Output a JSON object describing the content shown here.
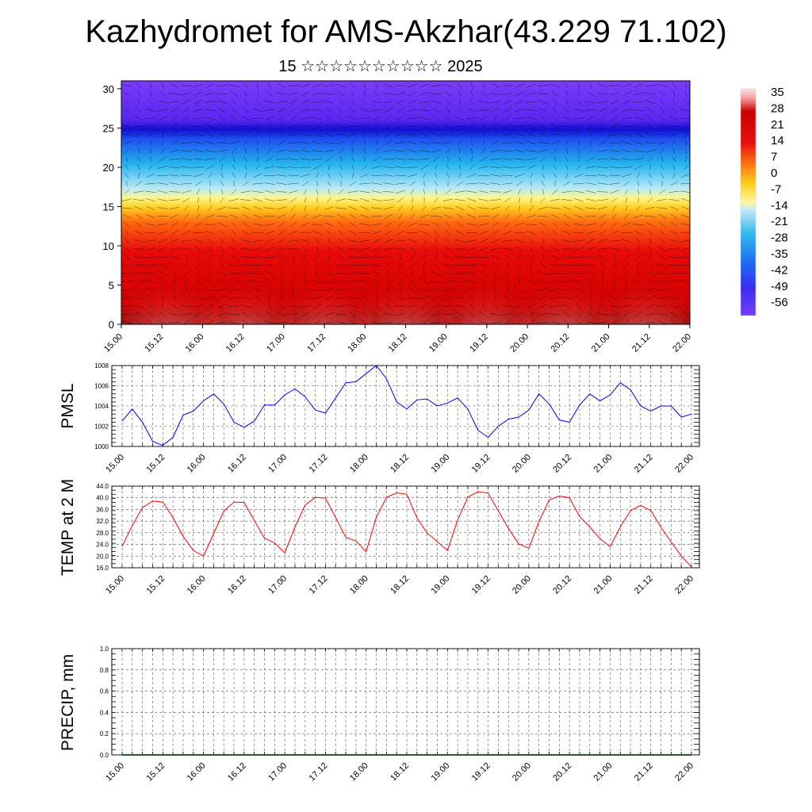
{
  "title": "Kazhydromet for AMS-Akzhar(43.229 71.102)",
  "subtitle": "15 ☆☆☆☆☆☆☆☆☆☆ 2025",
  "chart_data": [
    {
      "type": "heatmap",
      "description_free": true,
      "x_ticks": [
        "15.00",
        "15.12",
        "16.00",
        "16.12",
        "17.00",
        "17.12",
        "18.00",
        "18.12",
        "19.00",
        "19.12",
        "20.00",
        "20.12",
        "21.00",
        "21.12",
        "22.00"
      ],
      "y_ticks": [
        0,
        5,
        10,
        15,
        20,
        25,
        30
      ],
      "ylim": [
        0,
        31
      ],
      "colorbar": {
        "labels": [
          "35",
          "28",
          "21",
          "14",
          "7",
          "0",
          "-7",
          "-14",
          "-21",
          "-28",
          "-35",
          "-42",
          "-49",
          "-56"
        ],
        "range": [
          -60,
          38
        ]
      },
      "overlay": "wind-vectors"
    },
    {
      "type": "line",
      "ylabel": "PMSL",
      "color": "#0000ff",
      "ylim": [
        1000,
        1008
      ],
      "y_ticks": [
        1000,
        1002,
        1004,
        1006,
        1008
      ],
      "x_ticks": [
        "15.00",
        "15.12",
        "16.00",
        "16.12",
        "17.00",
        "17.12",
        "18.00",
        "18.12",
        "19.00",
        "19.12",
        "20.00",
        "20.12",
        "21.00",
        "21.12",
        "22.00"
      ],
      "x_step_hours": 3,
      "values": [
        1002.5,
        1003.7,
        1002.4,
        1000.5,
        1000.1,
        1000.9,
        1003.1,
        1003.5,
        1004.5,
        1005.2,
        1004.2,
        1002.4,
        1001.9,
        1002.5,
        1004.1,
        1004.1,
        1005.1,
        1005.7,
        1004.9,
        1003.6,
        1003.3,
        1004.8,
        1006.3,
        1006.4,
        1007.2,
        1008.0,
        1006.7,
        1004.4,
        1003.7,
        1004.6,
        1004.7,
        1004.0,
        1004.3,
        1004.8,
        1003.7,
        1001.6,
        1000.9,
        1002.0,
        1002.7,
        1002.9,
        1003.6,
        1005.2,
        1004.2,
        1002.6,
        1002.4,
        1004.1,
        1005.2,
        1004.5,
        1005.1,
        1006.3,
        1005.6,
        1004.0,
        1003.5,
        1004.0,
        1004.0,
        1002.9,
        1003.2
      ]
    },
    {
      "type": "line",
      "ylabel": "TEMP at 2 M",
      "color": "#ff0000",
      "ylim": [
        16,
        44
      ],
      "y_ticks": [
        "16.0",
        "20.0",
        "24.0",
        "28.0",
        "32.0",
        "36.0",
        "40.0",
        "44.0"
      ],
      "x_ticks": [
        "15.00",
        "15.12",
        "16.00",
        "16.12",
        "17.00",
        "17.12",
        "18.00",
        "18.12",
        "19.00",
        "19.12",
        "20.00",
        "20.12",
        "21.00",
        "21.12",
        "22.00"
      ],
      "x_step_hours": 3,
      "values": [
        23.3,
        30.5,
        36.6,
        38.9,
        38.5,
        33.2,
        26.8,
        21.9,
        20.0,
        27.7,
        35.4,
        38.5,
        38.4,
        32.2,
        26.2,
        24.5,
        21.1,
        30.0,
        37.5,
        40.1,
        39.9,
        33.2,
        26.4,
        25.2,
        21.5,
        33.3,
        40.1,
        41.7,
        41.2,
        33.1,
        27.9,
        25.0,
        21.9,
        32.4,
        40.2,
        42.1,
        41.6,
        35.5,
        29.5,
        24.2,
        22.7,
        31.9,
        39.2,
        40.6,
        40.0,
        33.5,
        30.0,
        26.0,
        23.2,
        30.0,
        35.6,
        37.4,
        35.6,
        29.9,
        24.8,
        20.0,
        16.3
      ]
    },
    {
      "type": "line",
      "ylabel": "PRECIP, mm",
      "ylim": [
        0,
        1
      ],
      "y_ticks": [
        "0.0",
        "0.2",
        "0.4",
        "0.6",
        "0.8",
        "1.0"
      ],
      "x_ticks": [
        "15.00",
        "15.12",
        "16.00",
        "16.12",
        "17.00",
        "17.12",
        "18.00",
        "18.12",
        "19.00",
        "19.12",
        "20.00",
        "20.12",
        "21.00",
        "21.12",
        "22.00"
      ],
      "x_step_hours": 3,
      "values": [
        0,
        0,
        0,
        0,
        0,
        0,
        0,
        0,
        0,
        0,
        0,
        0,
        0,
        0,
        0,
        0,
        0,
        0,
        0,
        0,
        0,
        0,
        0,
        0,
        0,
        0,
        0,
        0,
        0,
        0,
        0,
        0,
        0,
        0,
        0,
        0,
        0,
        0,
        0,
        0,
        0,
        0,
        0,
        0,
        0,
        0,
        0,
        0,
        0,
        0,
        0,
        0,
        0,
        0,
        0,
        0,
        0
      ]
    }
  ]
}
